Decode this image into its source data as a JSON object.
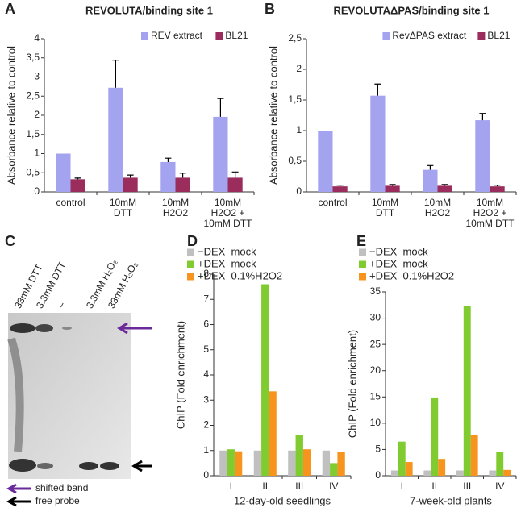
{
  "chart_data": [
    {
      "type": "bar",
      "label": "A",
      "title": "REVOLUTA/binding site 1",
      "ylabel": "Absorbance relative to control",
      "categories": [
        "control",
        "10mM\nDTT",
        "10mM\nH2O2",
        "10mM\nH2O2 +\n10mM DTT"
      ],
      "series": [
        {
          "name": "REV extract",
          "color": "#a3a3f0",
          "values": [
            1.0,
            2.72,
            0.78,
            1.96
          ],
          "errors": [
            null,
            0.72,
            0.1,
            0.48
          ]
        },
        {
          "name": "BL21",
          "color": "#9b2d5c",
          "values": [
            0.33,
            0.37,
            0.37,
            0.37
          ],
          "errors": [
            0.03,
            0.07,
            0.12,
            0.15
          ]
        }
      ],
      "ylim": [
        0,
        4
      ],
      "yticks": [
        0,
        {
          "value": 0.5,
          "label": "0,5"
        },
        1,
        {
          "value": 1.5,
          "label": "1,5"
        },
        2,
        {
          "value": 2.5,
          "label": "2,5"
        },
        3,
        {
          "value": 3.5,
          "label": "3,5"
        },
        4
      ],
      "legend": "upper right"
    },
    {
      "type": "bar",
      "label": "B",
      "title": "REVOLUTAΔPAS/binding site 1",
      "ylabel": "Absorbance relative to control",
      "categories": [
        "control",
        "10mM\nDTT",
        "10mM\nH2O2",
        "10mM\nH2O2 +\n10mM DTT"
      ],
      "series": [
        {
          "name": "RevΔPAS extract",
          "color": "#a3a3f0",
          "values": [
            1.0,
            1.57,
            0.36,
            1.17
          ],
          "errors": [
            null,
            0.19,
            0.07,
            0.11
          ]
        },
        {
          "name": "BL21",
          "color": "#9b2d5c",
          "values": [
            0.09,
            0.1,
            0.1,
            0.09
          ],
          "errors": [
            0.02,
            0.02,
            0.02,
            0.02
          ]
        }
      ],
      "ylim": [
        0,
        2.5
      ],
      "yticks": [
        0,
        {
          "value": 0.5,
          "label": "0,5"
        },
        1,
        {
          "value": 1.5,
          "label": "1,5"
        },
        2,
        {
          "value": 2.5,
          "label": "2,5"
        }
      ],
      "legend": "upper right"
    },
    {
      "type": "bar",
      "label": "D",
      "ylabel": "ChIP (Fold enrichment)",
      "xlabel": "12-day-old seedlings",
      "categories": [
        "I",
        "II",
        "III",
        "IV"
      ],
      "series": [
        {
          "name": "−DEX  mock",
          "color": "#c0c0c0",
          "values": [
            1,
            1,
            1,
            1
          ]
        },
        {
          "name": "+DEX  mock",
          "color": "#80cc30",
          "values": [
            1.05,
            7.6,
            1.6,
            0.5
          ]
        },
        {
          "name": "+DEX  0.1%H2O2",
          "color": "#f7941d",
          "values": [
            0.97,
            3.35,
            1.05,
            0.95
          ]
        }
      ],
      "ylim": [
        0,
        8
      ],
      "yticks": [
        0,
        1,
        2,
        3,
        4,
        5,
        6,
        7,
        8
      ],
      "legend": "upper left"
    },
    {
      "type": "bar",
      "label": "E",
      "ylabel": "ChIP (Fold enrichment)",
      "xlabel": "7-week-old plants",
      "categories": [
        "I",
        "II",
        "III",
        "IV"
      ],
      "series": [
        {
          "name": "−DEX  mock",
          "color": "#c0c0c0",
          "values": [
            1,
            1,
            1,
            1
          ]
        },
        {
          "name": "+DEX  mock",
          "color": "#80cc30",
          "values": [
            6.5,
            14.9,
            32.3,
            4.5
          ]
        },
        {
          "name": "+DEX  0.1%H2O2",
          "color": "#f7941d",
          "values": [
            2.6,
            3.2,
            7.8,
            1.1
          ]
        }
      ],
      "ylim": [
        0,
        35
      ],
      "yticks": [
        0,
        5,
        10,
        15,
        20,
        25,
        30,
        35
      ],
      "legend": "upper left"
    }
  ],
  "gel": {
    "label": "C",
    "lanes": [
      "33mM DTT",
      "3.3mM DTT",
      "−",
      "3.3mM H₂O₂",
      "33mM H₂O₂"
    ],
    "annotations": [
      "shifted band",
      "free probe"
    ]
  }
}
